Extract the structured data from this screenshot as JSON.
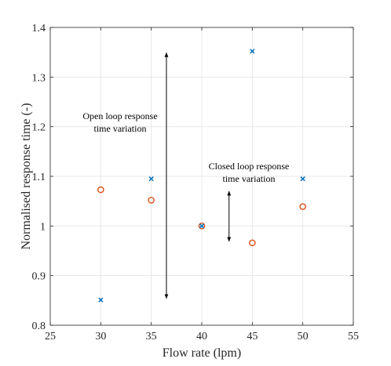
{
  "chart_data": {
    "type": "scatter",
    "xlabel": "Flow rate (lpm)",
    "ylabel": "Normalised response time (-)",
    "xlim": [
      25,
      55
    ],
    "ylim": [
      0.8,
      1.4
    ],
    "xticks": [
      25,
      30,
      35,
      40,
      45,
      50,
      55
    ],
    "yticks": [
      0.8,
      0.9,
      1.0,
      1.1,
      1.2,
      1.3,
      1.4
    ],
    "xtick_labels": [
      "25",
      "30",
      "35",
      "40",
      "45",
      "50",
      "55"
    ],
    "ytick_labels": [
      "0.8",
      "0.9",
      "1",
      "1.1",
      "1.2",
      "1.3",
      "1.4"
    ],
    "grid": true,
    "series": [
      {
        "marker": "x",
        "color": "#0072BD",
        "x": [
          30,
          35,
          40,
          45,
          50
        ],
        "y": [
          0.851,
          1.095,
          1.0,
          1.352,
          1.095
        ]
      },
      {
        "marker": "o",
        "color": "#D95319",
        "x": [
          30,
          35,
          40,
          45,
          50
        ],
        "y": [
          1.073,
          1.052,
          1.0,
          0.966,
          1.039
        ]
      }
    ],
    "annotations": [
      {
        "lines": [
          "Open loop response",
          "time variation"
        ],
        "arrow_x": 36.5,
        "arrow_y": [
          0.851,
          1.352
        ]
      },
      {
        "lines": [
          "Closed loop response",
          "time variation"
        ],
        "arrow_x": 42.7,
        "arrow_y": [
          0.966,
          1.073
        ]
      }
    ]
  }
}
